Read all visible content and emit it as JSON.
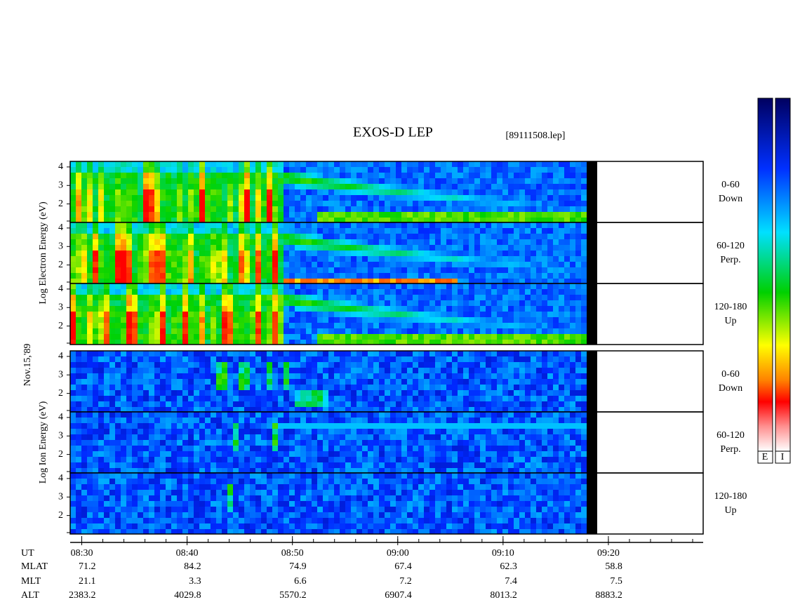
{
  "chart_data": {
    "type": "spectrogram",
    "title": "EXOS-D LEP",
    "file": "[89111508.lep]",
    "date": "Nov.15,'89",
    "groups": [
      {
        "ylabel": "Log Electron Energy (eV)",
        "panels": [
          {
            "label": "0-60",
            "direction": "Down"
          },
          {
            "label": "60-120",
            "direction": "Perp."
          },
          {
            "label": "120-180",
            "direction": "Up"
          }
        ]
      },
      {
        "ylabel": "Log Ion Energy (eV)",
        "panels": [
          {
            "label": "0-60",
            "direction": "Down"
          },
          {
            "label": "60-120",
            "direction": "Perp."
          },
          {
            "label": "120-180",
            "direction": "Up"
          }
        ]
      }
    ],
    "ylim": [
      1,
      4.3
    ],
    "yticks": [
      2,
      3,
      4
    ],
    "xlim": [
      508.9,
      569
    ],
    "xticks": [
      {
        "value": 510,
        "label": "08:30"
      },
      {
        "value": 520,
        "label": "08:40"
      },
      {
        "value": 530,
        "label": "08:50"
      },
      {
        "value": 540,
        "label": "09:00"
      },
      {
        "value": 550,
        "label": "09:10"
      },
      {
        "value": 560,
        "label": "09:20"
      }
    ],
    "row_labels": [
      "UT",
      "MLAT",
      "MLT",
      "ALT"
    ],
    "rows": [
      [
        71.2,
        84.2,
        74.9,
        67.4,
        62.3,
        58.8
      ],
      [
        21.1,
        3.3,
        6.6,
        7.2,
        7.4,
        7.5
      ],
      [
        2383.2,
        4029.8,
        5570.2,
        6907.4,
        8013.2,
        8883.2
      ]
    ],
    "colorbar_labels": [
      "E",
      "I"
    ]
  }
}
